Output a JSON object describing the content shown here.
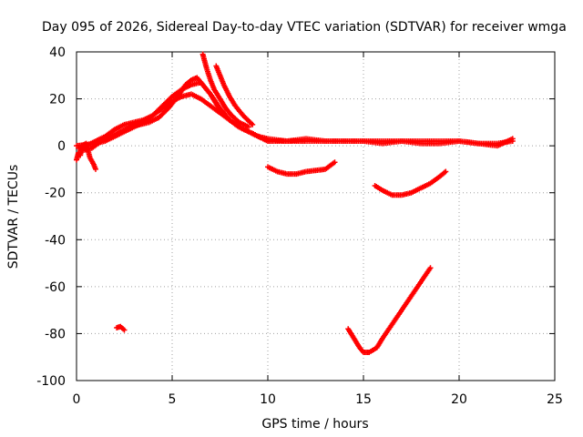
{
  "chart_data": {
    "type": "scatter",
    "title": "Day 095 of 2026, Sidereal Day-to-day VTEC variation (SDTVAR) for receiver wmga",
    "xlabel": "GPS time / hours",
    "ylabel": "SDTVAR / TECUs",
    "xlim": [
      0,
      25
    ],
    "ylim": [
      -100,
      40
    ],
    "xticks": [
      0,
      5,
      10,
      15,
      20,
      25
    ],
    "yticks": [
      -100,
      -80,
      -60,
      -40,
      -20,
      0,
      20,
      40
    ],
    "xtick_labels": [
      "0",
      "5",
      "10",
      "15",
      "20",
      "25"
    ],
    "ytick_labels": [
      "-100",
      "-80",
      "-60",
      "-40",
      "-20",
      "0",
      "20",
      "40"
    ],
    "grid": true,
    "marker": "plus",
    "color": "#ff0000",
    "series": [
      {
        "name": "arc-main-1",
        "x": [
          0.0,
          0.5,
          1.0,
          1.5,
          2.0,
          2.5,
          3.0,
          3.5,
          4.0,
          4.5,
          5.0,
          5.5,
          6.0,
          6.5,
          7.0,
          7.5,
          8.0,
          8.5,
          9.0,
          9.5,
          10.0,
          10.5,
          11.0,
          11.5,
          12.0,
          13.0,
          14.0,
          15.0,
          16.0,
          17.0,
          18.0,
          19.0,
          20.0,
          21.0,
          22.0,
          22.8
        ],
        "y": [
          0,
          0.5,
          1,
          2,
          4,
          6,
          8,
          10,
          13,
          16,
          19,
          21,
          22,
          20,
          17,
          14,
          11,
          8,
          6,
          4,
          2,
          2,
          2,
          2,
          2,
          2,
          2,
          2,
          2,
          2,
          2,
          2,
          2,
          1,
          1,
          2
        ]
      },
      {
        "name": "arc-main-2",
        "x": [
          0.1,
          0.5,
          1.0,
          1.5,
          2.0,
          2.5,
          3.0,
          3.5,
          4.0,
          4.5,
          5.0,
          5.5,
          6.0,
          6.5,
          7.0,
          7.5,
          8.0,
          8.5,
          9.0,
          9.5,
          10.0,
          11.0,
          12.0,
          13.0,
          14.0,
          15.0,
          16.0,
          17.0,
          18.0,
          19.0,
          20.0,
          21.0,
          22.0,
          22.8
        ],
        "y": [
          -1,
          0,
          2,
          4,
          7,
          9,
          10,
          11,
          13,
          17,
          21,
          24,
          26,
          27,
          22,
          16,
          11,
          8,
          6,
          4,
          3,
          2,
          3,
          2,
          2,
          2,
          1,
          2,
          1,
          1,
          2,
          1,
          0,
          3
        ]
      },
      {
        "name": "arc-main-3",
        "x": [
          0.3,
          0.8,
          1.3,
          1.8,
          2.3,
          2.8,
          3.3,
          3.8,
          4.3,
          4.8,
          5.3,
          5.7,
          6.0,
          6.3,
          6.6,
          7.0,
          7.3,
          7.6,
          8.0,
          8.5,
          9.0,
          9.5,
          10.0
        ],
        "y": [
          -2,
          -1,
          2,
          4,
          6,
          8,
          9,
          10,
          12,
          16,
          21,
          26,
          28,
          29,
          26,
          22,
          18,
          14,
          11,
          8,
          6,
          4,
          2
        ]
      },
      {
        "name": "arc-spike",
        "x": [
          6.6,
          6.8,
          7.0,
          7.2,
          7.5,
          7.8,
          8.1,
          8.5,
          9.0
        ],
        "y": [
          39,
          33,
          28,
          24,
          20,
          16,
          13,
          10,
          8
        ]
      },
      {
        "name": "arc-spike-2",
        "x": [
          7.3,
          7.5,
          7.7,
          8.0,
          8.3,
          8.7,
          9.2
        ],
        "y": [
          34,
          30,
          26,
          21,
          17,
          13,
          9
        ]
      },
      {
        "name": "arc-start",
        "x": [
          0.0,
          0.1,
          0.2,
          0.3,
          0.5,
          0.7,
          0.9,
          1.0
        ],
        "y": [
          -6,
          -3,
          -4,
          0,
          1,
          -5,
          -8,
          -10
        ]
      },
      {
        "name": "arc-a",
        "x": [
          10.0,
          10.5,
          11.0,
          11.5,
          12.0,
          12.5,
          13.0,
          13.5
        ],
        "y": [
          -9,
          -11,
          -12,
          -12,
          -11,
          -10.5,
          -10,
          -7
        ]
      },
      {
        "name": "arc-b",
        "x": [
          15.6,
          16.0,
          16.5,
          17.0,
          17.5,
          18.0,
          18.5,
          19.0,
          19.3
        ],
        "y": [
          -17,
          -19,
          -21,
          -21,
          -20,
          -18,
          -16,
          -13,
          -11
        ]
      },
      {
        "name": "arc-c",
        "x": [
          14.2,
          14.5,
          14.8,
          15.0,
          15.3,
          15.7,
          16.0,
          16.5,
          17.0,
          17.5,
          18.0,
          18.5
        ],
        "y": [
          -78,
          -82,
          -86,
          -88,
          -88,
          -86,
          -82,
          -76,
          -70,
          -64,
          -58,
          -52
        ]
      },
      {
        "name": "arc-d",
        "x": [
          2.1,
          2.3,
          2.5
        ],
        "y": [
          -77.5,
          -77,
          -78.5
        ]
      }
    ]
  }
}
